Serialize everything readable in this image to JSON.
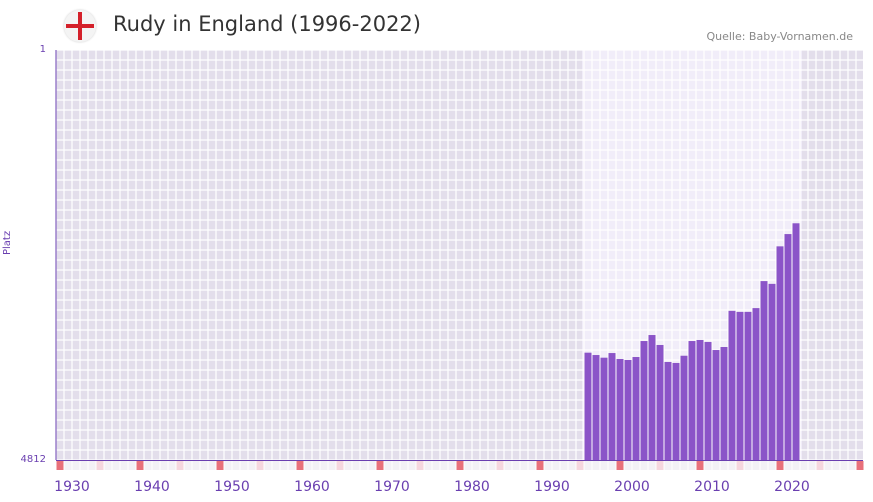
{
  "header": {
    "title": "Rudy in England (1996-2022)",
    "source": "Quelle: Baby-Vornamen.de",
    "flag_icon": "england-flag-icon"
  },
  "colors": {
    "bar": "#8b54c8",
    "axis": "#6a3fb0",
    "bg_dark": "#e3deeb",
    "bg_light": "#f1edf9",
    "marker_red": "#e8707a",
    "marker_pink": "#f5d6de"
  },
  "chart_data": {
    "type": "bar",
    "title": "Rudy in England (1996-2022)",
    "xlabel": "",
    "ylabel": "Platz",
    "y_scale": "log-inverted",
    "ylim": [
      4812,
      1
    ],
    "y_tick_labels": [
      "1",
      "4812"
    ],
    "xlim": [
      1930,
      2030
    ],
    "x_tick_labels": [
      "1930",
      "1940",
      "1950",
      "1960",
      "1970",
      "1980",
      "1990",
      "2000",
      "2010",
      "2020"
    ],
    "x": [
      1996,
      1997,
      1998,
      1999,
      2000,
      2001,
      2002,
      2003,
      2004,
      2005,
      2006,
      2007,
      2008,
      2009,
      2010,
      2011,
      2012,
      2013,
      2014,
      2015,
      2016,
      2017,
      2018,
      2019,
      2020,
      2021,
      2022
    ],
    "values": [
      523,
      549,
      580,
      527,
      596,
      608,
      572,
      411,
      363,
      446,
      634,
      647,
      557,
      411,
      402,
      419,
      495,
      465,
      220,
      225,
      225,
      208,
      119,
      126,
      58,
      45,
      36
    ],
    "highlight_range": [
      1996,
      2022
    ]
  }
}
